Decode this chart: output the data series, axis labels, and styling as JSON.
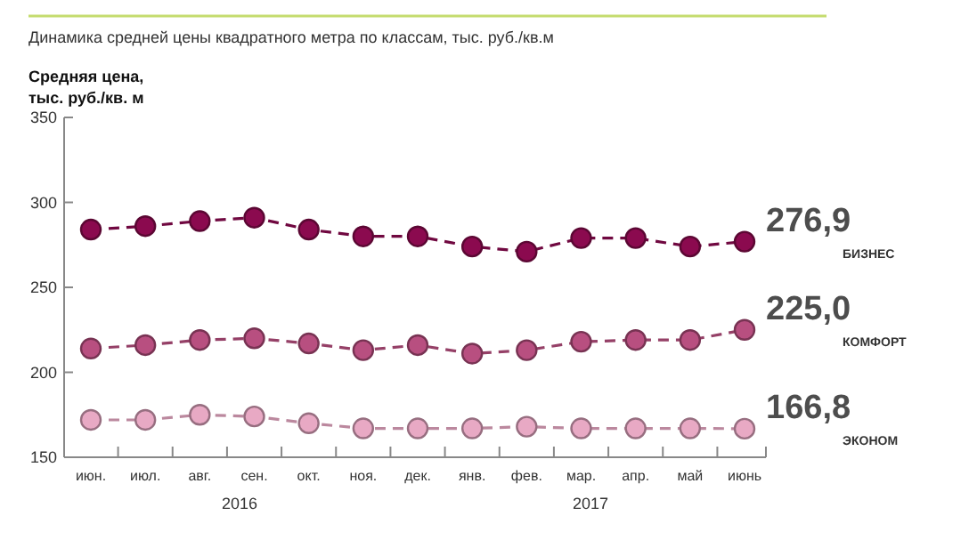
{
  "chart_data": {
    "type": "line",
    "title": "Динамика средней цены квадратного метра по классам, тыс. руб./кв.м",
    "ylabel": "Средняя цена,\nтыс. руб./кв. м",
    "categories": [
      "июн.",
      "июл.",
      "авг.",
      "сен.",
      "окт.",
      "ноя.",
      "дек.",
      "янв.",
      "фев.",
      "мар.",
      "апр.",
      "май",
      "июнь"
    ],
    "series": [
      {
        "name": "БИЗНЕС",
        "color": "#8b0a4f",
        "values": [
          284,
          286,
          289,
          291,
          284,
          280,
          280,
          274,
          271,
          279,
          279,
          274,
          276.9
        ],
        "value_labels": [
          null,
          null,
          null,
          null,
          null,
          null,
          null,
          null,
          null,
          null,
          null,
          null,
          "276,9"
        ]
      },
      {
        "name": "КОМФОРТ",
        "color": "#b84f80",
        "values": [
          214,
          216,
          219,
          220,
          217,
          213,
          216,
          211,
          213,
          218,
          219,
          219,
          225.0
        ],
        "value_labels": [
          null,
          null,
          null,
          null,
          null,
          null,
          null,
          null,
          null,
          null,
          null,
          null,
          "225,0"
        ]
      },
      {
        "name": "ЭКОНОМ",
        "color": "#e8a9c4",
        "values": [
          172,
          172,
          175,
          174,
          170,
          167,
          167,
          167,
          168,
          167,
          167,
          167,
          166.8
        ],
        "value_labels": [
          null,
          null,
          null,
          null,
          null,
          null,
          null,
          null,
          null,
          null,
          null,
          null,
          "166,8"
        ]
      }
    ],
    "annotations": [
      "2016",
      "2017"
    ],
    "ylim": [
      150,
      350
    ],
    "yticks": [
      150,
      200,
      250,
      300,
      350
    ],
    "grid": false,
    "marker": "circle",
    "line_style": "dashed"
  }
}
